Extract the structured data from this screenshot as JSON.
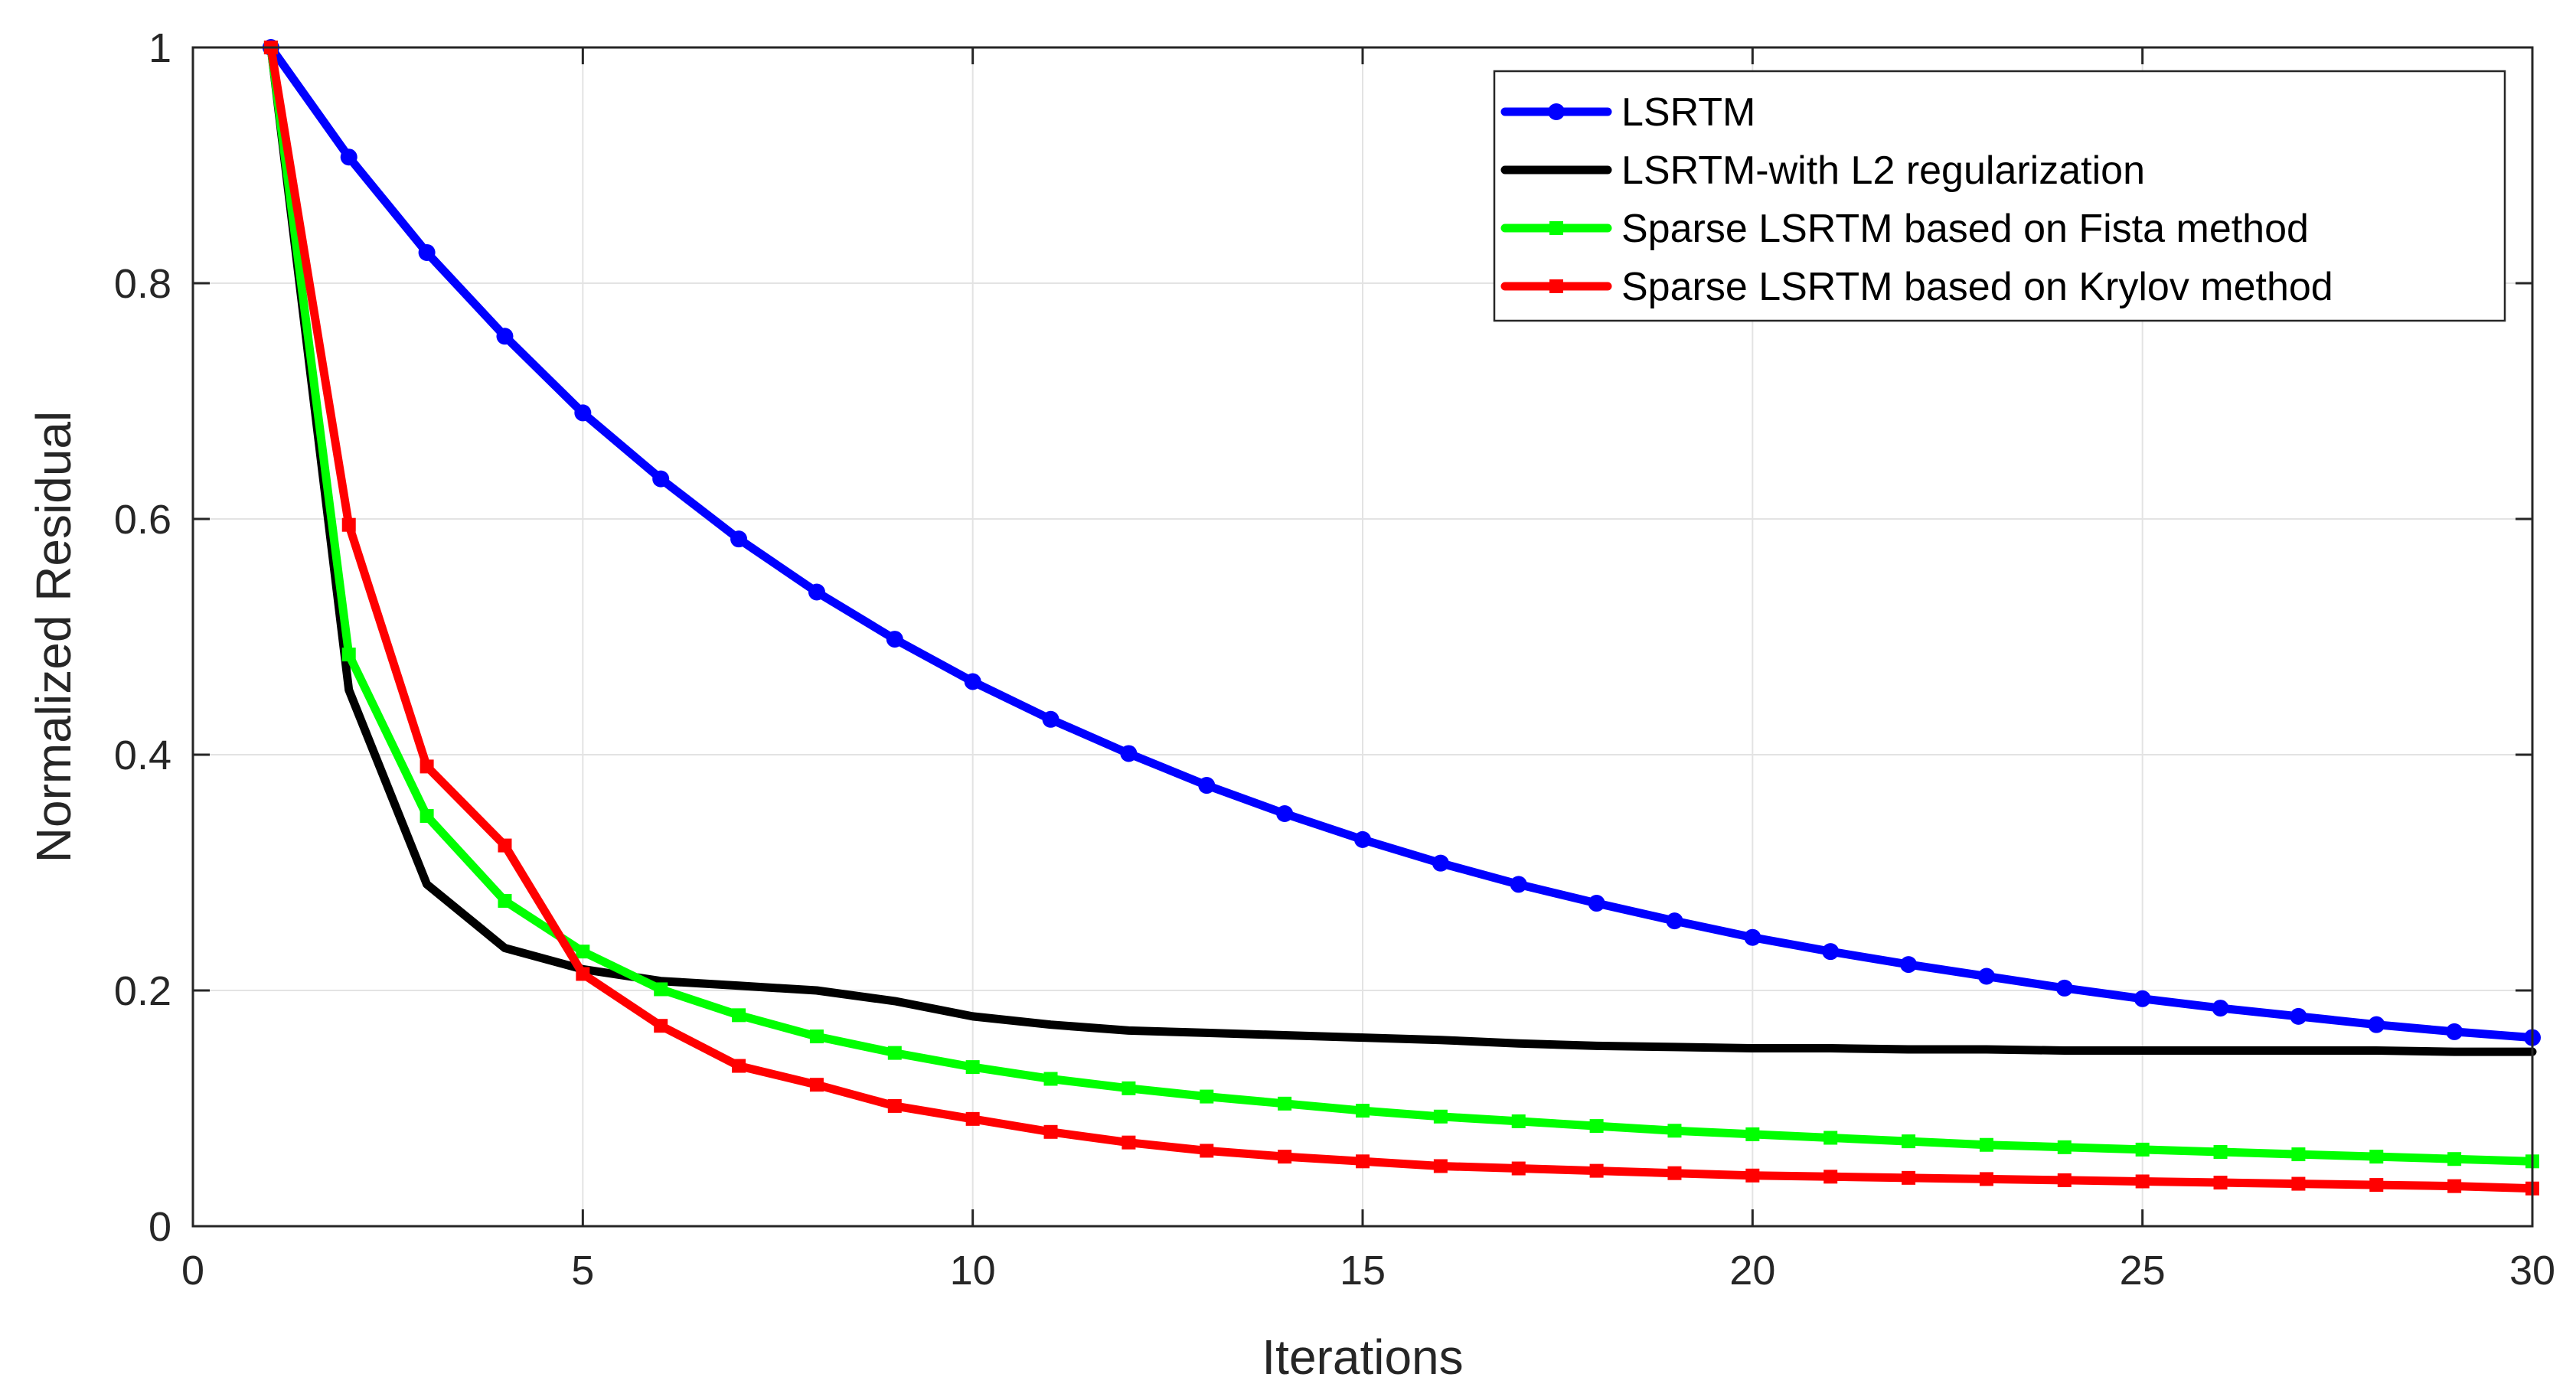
{
  "chart_data": {
    "type": "line",
    "title": "",
    "xlabel": "Iterations",
    "ylabel": "Normalized Residual",
    "xlim": [
      0,
      30
    ],
    "ylim": [
      0,
      1
    ],
    "xticks": [
      0,
      5,
      10,
      15,
      20,
      25,
      30
    ],
    "yticks": [
      0,
      0.2,
      0.4,
      0.6,
      0.8,
      1
    ],
    "xtick_labels": [
      "0",
      "5",
      "10",
      "15",
      "20",
      "25",
      "30"
    ],
    "ytick_labels": [
      "0",
      "0.2",
      "0.4",
      "0.6",
      "0.8",
      "1"
    ],
    "grid": true,
    "legend_position": "top-right",
    "x": [
      1,
      2,
      3,
      4,
      5,
      6,
      7,
      8,
      9,
      10,
      11,
      12,
      13,
      14,
      15,
      16,
      17,
      18,
      19,
      20,
      21,
      22,
      23,
      24,
      25,
      26,
      27,
      28,
      29,
      30
    ],
    "series": [
      {
        "name": "LSRTM",
        "color": "#0000ff",
        "marker": "circle",
        "values": [
          1.0,
          0.907,
          0.826,
          0.755,
          0.69,
          0.634,
          0.583,
          0.538,
          0.498,
          0.462,
          0.43,
          0.401,
          0.374,
          0.35,
          0.328,
          0.308,
          0.29,
          0.274,
          0.259,
          0.245,
          0.233,
          0.222,
          0.212,
          0.202,
          0.193,
          0.185,
          0.178,
          0.171,
          0.165,
          0.16
        ]
      },
      {
        "name": "LSRTM-with L2 regularization",
        "color": "#000000",
        "marker": "none",
        "values": [
          1.0,
          0.455,
          0.29,
          0.236,
          0.218,
          0.208,
          0.204,
          0.2,
          0.191,
          0.178,
          0.171,
          0.166,
          0.164,
          0.162,
          0.16,
          0.158,
          0.155,
          0.153,
          0.152,
          0.151,
          0.151,
          0.15,
          0.15,
          0.149,
          0.149,
          0.149,
          0.149,
          0.149,
          0.148,
          0.148
        ]
      },
      {
        "name": "Sparse LSRTM based on Fista method",
        "color": "#00ff00",
        "marker": "square",
        "values": [
          1.0,
          0.485,
          0.348,
          0.276,
          0.233,
          0.201,
          0.179,
          0.161,
          0.147,
          0.135,
          0.125,
          0.117,
          0.11,
          0.104,
          0.098,
          0.093,
          0.089,
          0.085,
          0.081,
          0.078,
          0.075,
          0.072,
          0.069,
          0.067,
          0.065,
          0.063,
          0.061,
          0.059,
          0.057,
          0.055
        ]
      },
      {
        "name": "Sparse LSRTM based on Krylov method",
        "color": "#ff0000",
        "marker": "square",
        "values": [
          1.0,
          0.595,
          0.39,
          0.323,
          0.214,
          0.17,
          0.136,
          0.12,
          0.102,
          0.091,
          0.08,
          0.071,
          0.064,
          0.059,
          0.055,
          0.051,
          0.049,
          0.047,
          0.045,
          0.043,
          0.042,
          0.041,
          0.04,
          0.039,
          0.038,
          0.037,
          0.036,
          0.035,
          0.034,
          0.032
        ]
      }
    ]
  }
}
